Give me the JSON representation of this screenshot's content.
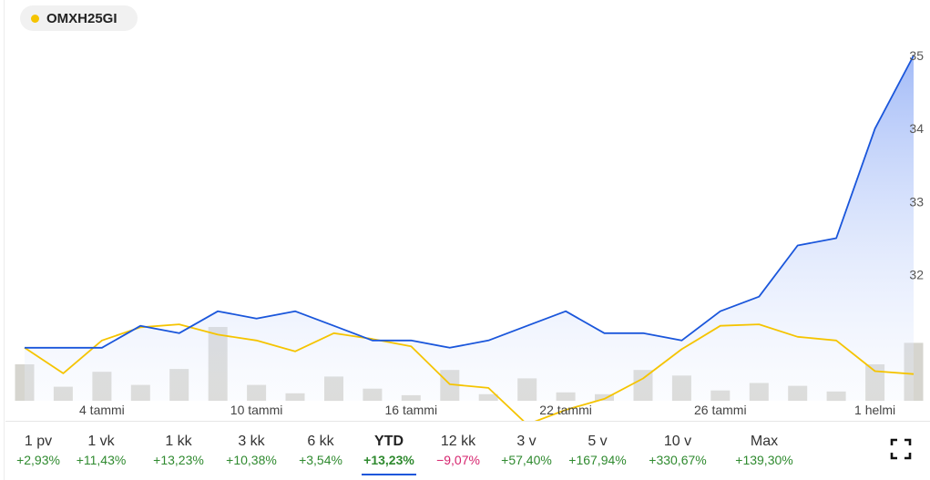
{
  "legend": {
    "label": "OMXH25GI",
    "color": "#f5c400"
  },
  "colors": {
    "primary_line": "#1a56db",
    "secondary_line": "#f5c400",
    "volume": "#d6d5cf",
    "positive": "#2f8a2f",
    "negative": "#d6246e",
    "active_underline": "#1a56db"
  },
  "chart_data": {
    "type": "line",
    "title": "",
    "xlabel": "",
    "ylabel": "",
    "x_tick_labels": [
      "4 tammi",
      "10 tammi",
      "16 tammi",
      "22 tammi",
      "26 tammi",
      "1 helmi"
    ],
    "x_tick_indices": [
      2,
      6,
      10,
      14,
      18,
      22
    ],
    "y_ticks": [
      32,
      33,
      34,
      35
    ],
    "ylim": [
      30.0,
      35.0
    ],
    "y_axis_side": "right",
    "grid": false,
    "series": [
      {
        "values": [
          31.0,
          31.0,
          31.0,
          31.3,
          31.2,
          31.5,
          31.4,
          31.5,
          31.3,
          31.1,
          31.1,
          31.0,
          31.1,
          31.3,
          31.5,
          31.2,
          31.2,
          31.1,
          31.5,
          31.7,
          32.4,
          32.5,
          34.0,
          35.0
        ],
        "color": "#1a56db",
        "fill": true
      },
      {
        "values": [
          31.0,
          30.65,
          31.1,
          31.28,
          31.32,
          31.18,
          31.1,
          30.95,
          31.2,
          31.12,
          31.02,
          30.5,
          30.45,
          29.95,
          30.15,
          30.3,
          30.58,
          30.98,
          31.3,
          31.32,
          31.15,
          31.1,
          30.68,
          30.64
        ],
        "color": "#f5c400",
        "fill": false
      }
    ],
    "volume": {
      "values": [
        39,
        15,
        31,
        17,
        34,
        79,
        17,
        8,
        26,
        13,
        6,
        33,
        7,
        24,
        9,
        7,
        33,
        27,
        11,
        19,
        16,
        10,
        39,
        62
      ],
      "max": 80
    }
  },
  "ranges": [
    {
      "label": "1 pv",
      "change": "+2,93%",
      "positive": true
    },
    {
      "label": "1 vk",
      "change": "+11,43%",
      "positive": true
    },
    {
      "label": "1 kk",
      "change": "+13,23%",
      "positive": true
    },
    {
      "label": "3 kk",
      "change": "+10,38%",
      "positive": true
    },
    {
      "label": "6 kk",
      "change": "+3,54%",
      "positive": true
    },
    {
      "label": "YTD",
      "change": "+13,23%",
      "positive": true,
      "active": true
    },
    {
      "label": "12 kk",
      "change": "−9,07%",
      "positive": false
    },
    {
      "label": "3 v",
      "change": "+57,40%",
      "positive": true
    },
    {
      "label": "5 v",
      "change": "+167,94%",
      "positive": true
    },
    {
      "label": "10 v",
      "change": "+330,67%",
      "positive": true
    },
    {
      "label": "Max",
      "change": "+139,30%",
      "positive": true
    }
  ],
  "toolbar": {
    "expand_icon": "expand-icon"
  }
}
